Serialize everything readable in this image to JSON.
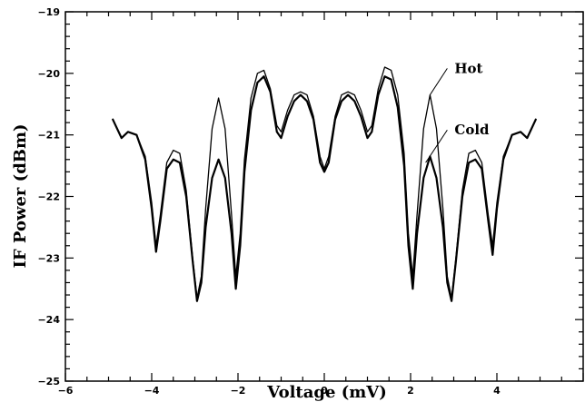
{
  "chart_data": {
    "type": "line",
    "title": "",
    "xlabel": "Voltage (mV)",
    "ylabel": "IF Power (dBm)",
    "xlim": [
      -6,
      6
    ],
    "ylim": [
      -25,
      -19
    ],
    "x_ticks": [
      -6,
      -4,
      -2,
      0,
      2,
      4
    ],
    "y_ticks": [
      -25,
      -24,
      -23,
      -22,
      -21,
      -20,
      -19
    ],
    "grid": false,
    "colors": {
      "line": "#000000",
      "axes": "#000000",
      "background": "#ffffff"
    },
    "series": [
      {
        "name": "Hot",
        "x": [
          -4.9,
          -4.7,
          -4.55,
          -4.35,
          -4.15,
          -4.0,
          -3.9,
          -3.8,
          -3.65,
          -3.5,
          -3.35,
          -3.2,
          -3.05,
          -2.95,
          -2.85,
          -2.75,
          -2.6,
          -2.45,
          -2.3,
          -2.15,
          -2.05,
          -1.95,
          -1.85,
          -1.7,
          -1.55,
          -1.4,
          -1.25,
          -1.1,
          -1.0,
          -0.85,
          -0.7,
          -0.55,
          -0.4,
          -0.25,
          -0.1,
          0.0,
          0.1,
          0.25,
          0.4,
          0.55,
          0.7,
          0.85,
          1.0,
          1.1,
          1.25,
          1.4,
          1.55,
          1.7,
          1.85,
          1.95,
          2.05,
          2.15,
          2.3,
          2.45,
          2.6,
          2.75,
          2.85,
          2.95,
          3.05,
          3.2,
          3.35,
          3.5,
          3.65,
          3.8,
          3.9,
          4.0,
          4.15,
          4.35,
          4.55,
          4.7,
          4.9
        ],
        "y": [
          -20.75,
          -21.05,
          -20.95,
          -21.0,
          -21.35,
          -22.1,
          -22.8,
          -22.3,
          -21.45,
          -21.25,
          -21.3,
          -21.9,
          -23.0,
          -23.65,
          -23.3,
          -22.2,
          -20.9,
          -20.4,
          -20.9,
          -22.3,
          -23.3,
          -22.6,
          -21.4,
          -20.4,
          -20.0,
          -19.95,
          -20.25,
          -20.85,
          -20.95,
          -20.6,
          -20.35,
          -20.3,
          -20.35,
          -20.7,
          -21.35,
          -21.55,
          -21.35,
          -20.7,
          -20.35,
          -20.3,
          -20.35,
          -20.6,
          -20.95,
          -20.85,
          -20.25,
          -19.9,
          -19.95,
          -20.35,
          -21.3,
          -22.6,
          -23.3,
          -22.3,
          -20.9,
          -20.35,
          -20.9,
          -22.2,
          -23.3,
          -23.65,
          -23.0,
          -21.9,
          -21.3,
          -21.25,
          -21.45,
          -22.3,
          -22.8,
          -22.1,
          -21.35,
          -21.0,
          -20.95,
          -21.05,
          -20.75
        ]
      },
      {
        "name": "Cold",
        "x": [
          -4.9,
          -4.7,
          -4.55,
          -4.35,
          -4.15,
          -4.0,
          -3.9,
          -3.8,
          -3.65,
          -3.5,
          -3.35,
          -3.2,
          -3.05,
          -2.95,
          -2.85,
          -2.75,
          -2.6,
          -2.45,
          -2.3,
          -2.15,
          -2.05,
          -1.95,
          -1.85,
          -1.7,
          -1.55,
          -1.4,
          -1.25,
          -1.1,
          -1.0,
          -0.85,
          -0.7,
          -0.55,
          -0.4,
          -0.25,
          -0.1,
          0.0,
          0.1,
          0.25,
          0.4,
          0.55,
          0.7,
          0.85,
          1.0,
          1.1,
          1.25,
          1.4,
          1.55,
          1.7,
          1.85,
          1.95,
          2.05,
          2.15,
          2.3,
          2.45,
          2.6,
          2.75,
          2.85,
          2.95,
          3.05,
          3.2,
          3.35,
          3.5,
          3.65,
          3.8,
          3.9,
          4.0,
          4.15,
          4.35,
          4.55,
          4.7,
          4.9
        ],
        "y": [
          -20.75,
          -21.05,
          -20.95,
          -21.0,
          -21.4,
          -22.2,
          -22.9,
          -22.4,
          -21.55,
          -21.4,
          -21.45,
          -22.0,
          -23.05,
          -23.7,
          -23.4,
          -22.5,
          -21.7,
          -21.4,
          -21.7,
          -22.6,
          -23.5,
          -22.8,
          -21.6,
          -20.6,
          -20.15,
          -20.05,
          -20.3,
          -20.95,
          -21.05,
          -20.7,
          -20.45,
          -20.35,
          -20.45,
          -20.75,
          -21.45,
          -21.6,
          -21.45,
          -20.75,
          -20.45,
          -20.35,
          -20.45,
          -20.7,
          -21.05,
          -20.95,
          -20.35,
          -20.05,
          -20.1,
          -20.55,
          -21.5,
          -22.8,
          -23.5,
          -22.6,
          -21.7,
          -21.35,
          -21.7,
          -22.5,
          -23.4,
          -23.7,
          -23.05,
          -22.0,
          -21.45,
          -21.4,
          -21.55,
          -22.4,
          -22.95,
          -22.2,
          -21.4,
          -21.0,
          -20.95,
          -21.05,
          -20.75
        ]
      }
    ]
  }
}
